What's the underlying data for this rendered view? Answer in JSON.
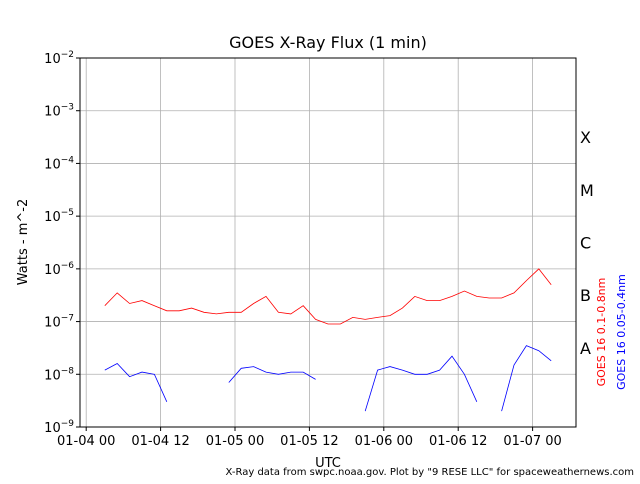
{
  "chart_data": {
    "type": "line",
    "title": "GOES X-Ray Flux (1 min)",
    "xlabel": "UTC",
    "ylabel": "Watts - m^-2",
    "credit": "X-Ray data from swpc.noaa.gov. Plot by \"9 RESE LLC\" for spaceweathernews.com",
    "log_y": true,
    "grid": true,
    "xlim": [
      "01-03 23",
      "01-07 07"
    ],
    "xticks": [
      "01-04 00",
      "01-04 12",
      "01-05 00",
      "01-05 12",
      "01-06 00",
      "01-06 12",
      "01-07 00"
    ],
    "ylim": [
      1e-09,
      0.01
    ],
    "yticks": [
      {
        "value": 1e-09,
        "label": "10−9"
      },
      {
        "value": 1e-08,
        "label": "10−8"
      },
      {
        "value": 1e-07,
        "label": "10−7"
      },
      {
        "value": 1e-06,
        "label": "10−6"
      },
      {
        "value": 1e-05,
        "label": "10−5"
      },
      {
        "value": 0.0001,
        "label": "10−4"
      },
      {
        "value": 0.001,
        "label": "10−3"
      },
      {
        "value": 0.01,
        "label": "10−2"
      }
    ],
    "flare_classes": [
      {
        "label": "A",
        "value": 1e-08
      },
      {
        "label": "B",
        "value": 1e-07
      },
      {
        "label": "C",
        "value": 1e-06
      },
      {
        "label": "M",
        "value": 1e-05
      },
      {
        "label": "X",
        "value": 0.0001
      }
    ],
    "x": [
      "01-04 03",
      "01-04 05",
      "01-04 07",
      "01-04 09",
      "01-04 11",
      "01-04 13",
      "01-04 15",
      "01-04 17",
      "01-04 19",
      "01-04 21",
      "01-04 23",
      "01-05 01",
      "01-05 03",
      "01-05 05",
      "01-05 07",
      "01-05 09",
      "01-05 11",
      "01-05 13",
      "01-05 15",
      "01-05 17",
      "01-05 19",
      "01-05 21",
      "01-05 23",
      "01-06 01",
      "01-06 03",
      "01-06 05",
      "01-06 07",
      "01-06 09",
      "01-06 11",
      "01-06 13",
      "01-06 15",
      "01-06 17",
      "01-06 19",
      "01-06 21",
      "01-06 23",
      "01-07 01",
      "01-07 03"
    ],
    "series": [
      {
        "name": "GOES 16 0.1-0.8nm",
        "color": "#ff0000",
        "values": [
          2e-07,
          3.5e-07,
          2.2e-07,
          2.5e-07,
          2e-07,
          1.6e-07,
          1.6e-07,
          1.8e-07,
          1.5e-07,
          1.4e-07,
          1.5e-07,
          1.5e-07,
          2.2e-07,
          3e-07,
          1.5e-07,
          1.4e-07,
          2e-07,
          1.1e-07,
          9e-08,
          9e-08,
          1.2e-07,
          1.1e-07,
          1.2e-07,
          1.3e-07,
          1.8e-07,
          3e-07,
          2.5e-07,
          2.5e-07,
          3e-07,
          3.8e-07,
          3e-07,
          2.8e-07,
          2.8e-07,
          3.5e-07,
          6e-07,
          1e-06,
          5e-07
        ]
      },
      {
        "name": "GOES 16 0.05-0.4nm",
        "color": "#0000ff",
        "values": [
          1.2e-08,
          1.6e-08,
          9e-09,
          1.1e-08,
          1e-08,
          3e-09,
          null,
          null,
          null,
          null,
          7e-09,
          1.3e-08,
          1.4e-08,
          1.1e-08,
          1e-08,
          1.1e-08,
          1.1e-08,
          8e-09,
          null,
          null,
          null,
          2e-09,
          1.2e-08,
          1.4e-08,
          1.2e-08,
          1e-08,
          1e-08,
          1.2e-08,
          2.2e-08,
          1e-08,
          3e-09,
          null,
          2e-09,
          1.5e-08,
          3.5e-08,
          2.8e-08,
          1.8e-08
        ]
      }
    ]
  }
}
